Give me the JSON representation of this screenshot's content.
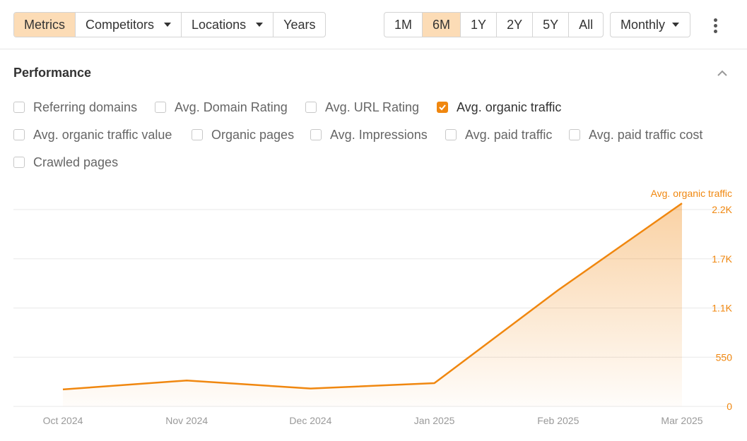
{
  "toolbar": {
    "view_tabs": [
      "Metrics",
      "Competitors",
      "Locations",
      "Years"
    ],
    "range_tabs": [
      "1M",
      "6M",
      "1Y",
      "2Y",
      "5Y",
      "All"
    ],
    "interval": "Monthly"
  },
  "section": {
    "title": "Performance"
  },
  "metrics": [
    {
      "label": "Referring domains",
      "checked": false
    },
    {
      "label": "Avg. Domain Rating",
      "checked": false
    },
    {
      "label": "Avg. URL Rating",
      "checked": false
    },
    {
      "label": "Avg. organic traffic",
      "checked": true
    },
    {
      "label": "Avg. organic traffic value",
      "checked": false
    },
    {
      "label": "Organic pages",
      "checked": false
    },
    {
      "label": "Avg. Impressions",
      "checked": false
    },
    {
      "label": "Avg. paid traffic",
      "checked": false
    },
    {
      "label": "Avg. paid traffic cost",
      "checked": false
    },
    {
      "label": "Crawled pages",
      "checked": false
    }
  ],
  "colors": {
    "accent": "#f0870f",
    "active_tab": "#fcdcb6",
    "grid": "#e8e8e8",
    "axis_text": "#999999"
  },
  "chart_data": {
    "type": "area",
    "series": [
      {
        "name": "Avg. organic traffic",
        "values": [
          190,
          290,
          200,
          260,
          1300,
          2270
        ]
      }
    ],
    "x": [
      "Oct 2024",
      "Nov 2024",
      "Dec 2024",
      "Jan 2025",
      "Feb 2025",
      "Mar 2025"
    ],
    "ytick_labels": [
      "0",
      "550",
      "1.1K",
      "1.7K",
      "2.2K"
    ],
    "ylim": [
      0,
      2200
    ],
    "grid": true,
    "legend": "top-right"
  }
}
